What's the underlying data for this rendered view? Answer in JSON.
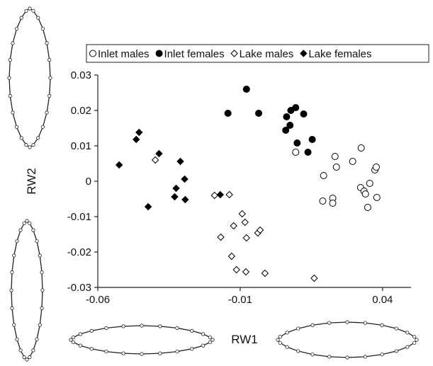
{
  "chart_data": {
    "type": "scatter",
    "x_label": "RW1",
    "y_label": "RW2",
    "xlim": [
      -0.06,
      0.05
    ],
    "ylim": [
      -0.03,
      0.03
    ],
    "xticks": [
      -0.06,
      -0.01,
      0.04
    ],
    "yticks": [
      -0.03,
      -0.02,
      -0.01,
      0,
      0.01,
      0.02,
      0.03
    ],
    "series": [
      {
        "name": "Inlet males",
        "color": "#000000",
        "marker": "circle",
        "filled": false,
        "x": [
          0.0095,
          0.0193,
          0.0233,
          0.0238,
          0.0295,
          0.0325,
          0.0373,
          0.0378,
          0.0355,
          0.0323,
          0.0335,
          0.034,
          0.038,
          0.0348,
          0.0225,
          0.0225,
          0.019
        ],
        "values": [
          0.0082,
          0.0016,
          0.007,
          0.004,
          0.0056,
          0.0094,
          0.0032,
          0.004,
          -0.0006,
          -0.0018,
          -0.0028,
          -0.0036,
          -0.0046,
          -0.0074,
          -0.0048,
          -0.0062,
          -0.0056
        ]
      },
      {
        "name": "Inlet females",
        "color": "#000000",
        "marker": "circle",
        "filled": true,
        "x": [
          -0.0078,
          -0.0143,
          -0.0035,
          0.0095,
          0.0078,
          0.0063,
          0.0123,
          0.006,
          0.0075,
          0.01,
          0.0153,
          0.0138
        ],
        "values": [
          0.026,
          0.0192,
          0.0192,
          0.0208,
          0.02,
          0.0182,
          0.019,
          0.0144,
          0.0158,
          0.0108,
          0.0118,
          0.0082
        ]
      },
      {
        "name": "Lake males",
        "color": "#000000",
        "marker": "diamond",
        "filled": false,
        "x": [
          -0.0398,
          -0.019,
          -0.0138,
          -0.0093,
          -0.0083,
          -0.0123,
          -0.0168,
          -0.0078,
          -0.0038,
          -0.003,
          -0.013,
          -0.0113,
          -0.008,
          -0.0013,
          0.016
        ],
        "values": [
          0.006,
          -0.004,
          -0.0038,
          -0.0092,
          -0.0116,
          -0.0126,
          -0.0158,
          -0.016,
          -0.0146,
          -0.0138,
          -0.0212,
          -0.025,
          -0.0256,
          -0.026,
          -0.0274
        ]
      },
      {
        "name": "Lake females",
        "color": "#000000",
        "marker": "diamond",
        "filled": true,
        "x": [
          -0.0525,
          -0.0455,
          -0.0465,
          -0.0385,
          -0.031,
          -0.0295,
          -0.0325,
          -0.033,
          -0.0293,
          -0.0423,
          -0.017
        ],
        "values": [
          0.0046,
          0.0138,
          0.0118,
          0.0078,
          0.0056,
          0.0006,
          -0.002,
          -0.0044,
          -0.0052,
          -0.0072,
          -0.0038
        ]
      }
    ]
  }
}
